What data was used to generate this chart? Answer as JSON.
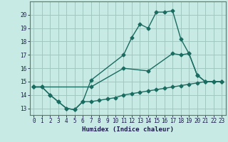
{
  "xlabel": "Humidex (Indice chaleur)",
  "xlim": [
    -0.5,
    23.5
  ],
  "ylim": [
    12.5,
    21.0
  ],
  "yticks": [
    13,
    14,
    15,
    16,
    17,
    18,
    19,
    20
  ],
  "xticks": [
    0,
    1,
    2,
    3,
    4,
    5,
    6,
    7,
    8,
    9,
    10,
    11,
    12,
    13,
    14,
    15,
    16,
    17,
    18,
    19,
    20,
    21,
    22,
    23
  ],
  "background_color": "#c8eae4",
  "grid_color": "#a0c8c0",
  "line_color": "#1a6b60",
  "line1_x": [
    0,
    1,
    2,
    3,
    4,
    5,
    6,
    7,
    11,
    12,
    13,
    14,
    15,
    16,
    17,
    18,
    19,
    20,
    21,
    22,
    23
  ],
  "line1_y": [
    14.6,
    14.6,
    14.0,
    13.5,
    13.0,
    12.9,
    13.5,
    15.1,
    17.0,
    18.3,
    19.3,
    19.0,
    20.2,
    20.2,
    20.3,
    18.2,
    17.1,
    15.5,
    15.0,
    15.0,
    15.0
  ],
  "line2_x": [
    0,
    1,
    2,
    3,
    4,
    5,
    6,
    7,
    8,
    9,
    10,
    11,
    12,
    13,
    14,
    15,
    16,
    17,
    18,
    19,
    20,
    21,
    22,
    23
  ],
  "line2_y": [
    14.6,
    14.6,
    14.0,
    13.5,
    13.0,
    12.9,
    13.5,
    13.5,
    13.6,
    13.7,
    13.8,
    14.0,
    14.1,
    14.2,
    14.3,
    14.4,
    14.5,
    14.6,
    14.7,
    14.8,
    14.9,
    15.0,
    15.0,
    15.0
  ],
  "line3_x": [
    0,
    7,
    11,
    14,
    17,
    18,
    19,
    20,
    21,
    22,
    23
  ],
  "line3_y": [
    14.6,
    14.6,
    16.0,
    15.8,
    17.1,
    17.0,
    17.1,
    15.5,
    15.0,
    15.0,
    15.0
  ]
}
